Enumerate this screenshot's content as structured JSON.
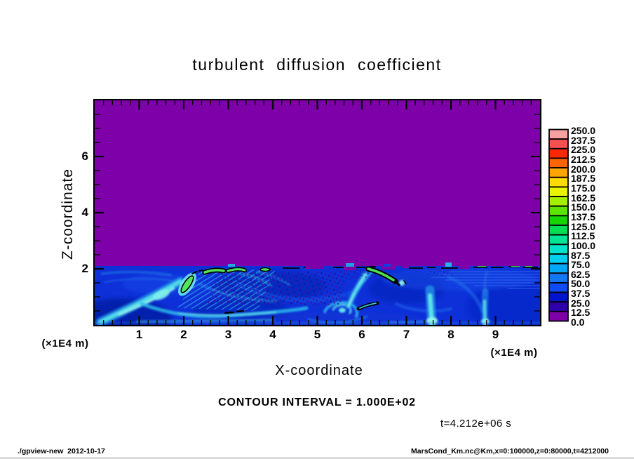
{
  "title": "turbulent diffusion coefficient",
  "axes": {
    "x": {
      "label": "X-coordinate",
      "unit": "(×1E4 m)",
      "ticks": [
        "1",
        "2",
        "3",
        "4",
        "5",
        "6",
        "7",
        "8",
        "9"
      ]
    },
    "z": {
      "label": "Z-coordinate",
      "unit": "(×1E4 m)",
      "ticks": [
        "2",
        "4",
        "6"
      ]
    }
  },
  "colorbar": {
    "labels_top_to_bottom": [
      "250.0",
      "237.5",
      "225.0",
      "212.5",
      "200.0",
      "187.5",
      "175.0",
      "162.5",
      "150.0",
      "137.5",
      "125.0",
      "112.5",
      "100.0",
      "87.5",
      "75.0",
      "62.5",
      "50.0",
      "37.5",
      "25.0",
      "12.5",
      "0.0"
    ],
    "colors_top_to_bottom": [
      "#F7A0A0",
      "#F75050",
      "#F92800",
      "#FF6400",
      "#FFA500",
      "#FFDB00",
      "#E9F500",
      "#A5F000",
      "#5CE400",
      "#15D600",
      "#00DE52",
      "#00E596",
      "#00E4CC",
      "#00CFF0",
      "#00A8FA",
      "#1278F8",
      "#0E4BF4",
      "#0014CE",
      "#3000AC",
      "#7D00A8"
    ]
  },
  "captions": {
    "contour_interval": "CONTOUR INTERVAL = 1.000E+02",
    "time": "t=4.212e+06 s"
  },
  "footer": {
    "left": "./gpview-new  2012-10-17",
    "right": "MarsCond_Km.nc@Km,x=0:100000,z=0:80000,t=4212000"
  },
  "chart_data": {
    "type": "heatmap",
    "title": "turbulent diffusion coefficient",
    "xlabel": "X-coordinate",
    "ylabel": "Z-coordinate",
    "x_unit": "×1E4 m",
    "y_unit": "×1E4 m",
    "xlim": [
      0,
      10
    ],
    "ylim": [
      0,
      8
    ],
    "x_ticks": [
      1,
      2,
      3,
      4,
      5,
      6,
      7,
      8,
      9
    ],
    "y_ticks": [
      2,
      4,
      6
    ],
    "grid": false,
    "legend_position": "right-colorbar",
    "colorbar_levels": [
      0.0,
      12.5,
      25.0,
      37.5,
      50.0,
      62.5,
      75.0,
      87.5,
      100.0,
      112.5,
      125.0,
      137.5,
      150.0,
      162.5,
      175.0,
      187.5,
      200.0,
      212.5,
      225.0,
      237.5,
      250.0
    ],
    "colorbar_colors_bottom_to_top": [
      "#7D00A8",
      "#3000AC",
      "#0014CE",
      "#0E4BF4",
      "#1278F8",
      "#00A8FA",
      "#00CFF0",
      "#00E4CC",
      "#00E596",
      "#00DE52",
      "#15D600",
      "#5CE400",
      "#A5F000",
      "#E9F500",
      "#FFDB00",
      "#FFA500",
      "#FF6400",
      "#F92800",
      "#F75050",
      "#F7A0A0"
    ],
    "contour_interval": 100.0,
    "time": "t=4.212e+06 s",
    "field_summary": "Turbulent diffusion coefficient ≈ 0 (purple, bottom colorbar bin) everywhere above z ≈ 2×1E4 m. Below z ≈ 2 a turbulent boundary layer with values mostly 12.5–100 (blue to cyan): bright diagonal updraft band near x≈0.2–1.8, filament exceeding 100 (green, outlined by the 100 contour) at (x≈2.1, z≈1.6) and along z≈2 near x≈2.5–3.9 and x≈6.2–6.8, herringbone speckle turbulence for x≈2.5–5.6 below z≈2, spiral vortex centered near (x≈5.5, z≈0.6), bright diagonal streak from (6.2,1.7) to (5.7,0.6), vertical convective plumes at x≈7.6 and x≈8.8, and layered horizontal streaks near z≈1.6–1.9 for x>7. Black dashed segments mark the 100-contour along the z≈2 interface."
  }
}
